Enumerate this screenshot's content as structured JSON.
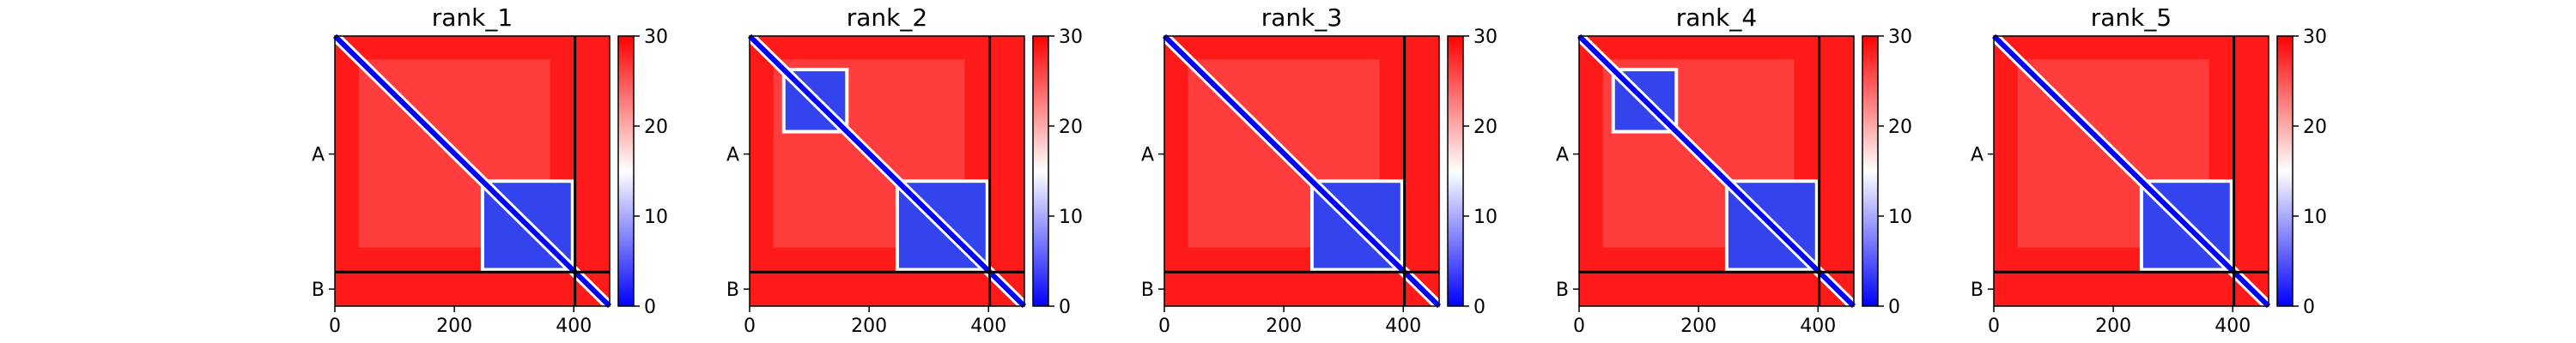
{
  "chart_data": {
    "type": "heatmap",
    "description_note": "",
    "colormap": {
      "low": "#0000ff",
      "mid": "#ffffff",
      "high": "#ff0000"
    },
    "value_range": [
      0,
      30
    ],
    "colorbar_ticks": [
      "0",
      "10",
      "20",
      "30"
    ],
    "x_ticks": [
      "0",
      "200",
      "400"
    ],
    "x_tick_values": [
      0,
      200,
      400
    ],
    "x_range": [
      0,
      460
    ],
    "chains": [
      {
        "label": "A",
        "start": 0,
        "end": 402
      },
      {
        "label": "B",
        "start": 402,
        "end": 460
      }
    ],
    "panels": [
      {
        "title": "rank_1",
        "blocks": [
          [
            250,
            395
          ]
        ]
      },
      {
        "title": "rank_2",
        "blocks": [
          [
            60,
            160
          ],
          [
            250,
            395
          ]
        ]
      },
      {
        "title": "rank_3",
        "blocks": [
          [
            250,
            395
          ]
        ]
      },
      {
        "title": "rank_4",
        "blocks": [
          [
            60,
            160
          ],
          [
            250,
            395
          ]
        ]
      },
      {
        "title": "rank_5",
        "blocks": [
          [
            250,
            395
          ]
        ]
      }
    ]
  }
}
